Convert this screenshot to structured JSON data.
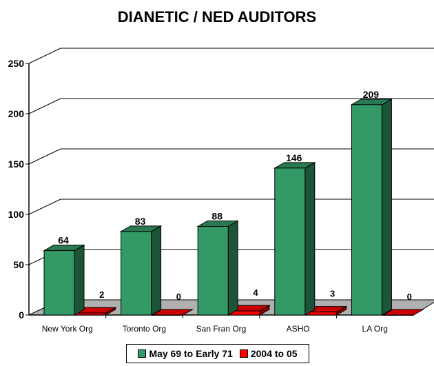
{
  "chart_data": {
    "type": "bar",
    "title": "DIANETIC / NED AUDITORS",
    "categories": [
      "New York Org",
      "Toronto Org",
      "San Fran Org",
      "ASHO",
      "LA Org"
    ],
    "series": [
      {
        "name": "May 69 to Early 71",
        "values": [
          64,
          83,
          88,
          146,
          209
        ],
        "color": "#339966"
      },
      {
        "name": "2004 to 05",
        "values": [
          2,
          0,
          4,
          3,
          0
        ],
        "color": "#ff0000"
      }
    ],
    "ylim": [
      0,
      250
    ],
    "yticks": [
      0,
      50,
      100,
      150,
      200,
      250
    ],
    "grid": true,
    "legend_position": "bottom",
    "three_d": true
  }
}
